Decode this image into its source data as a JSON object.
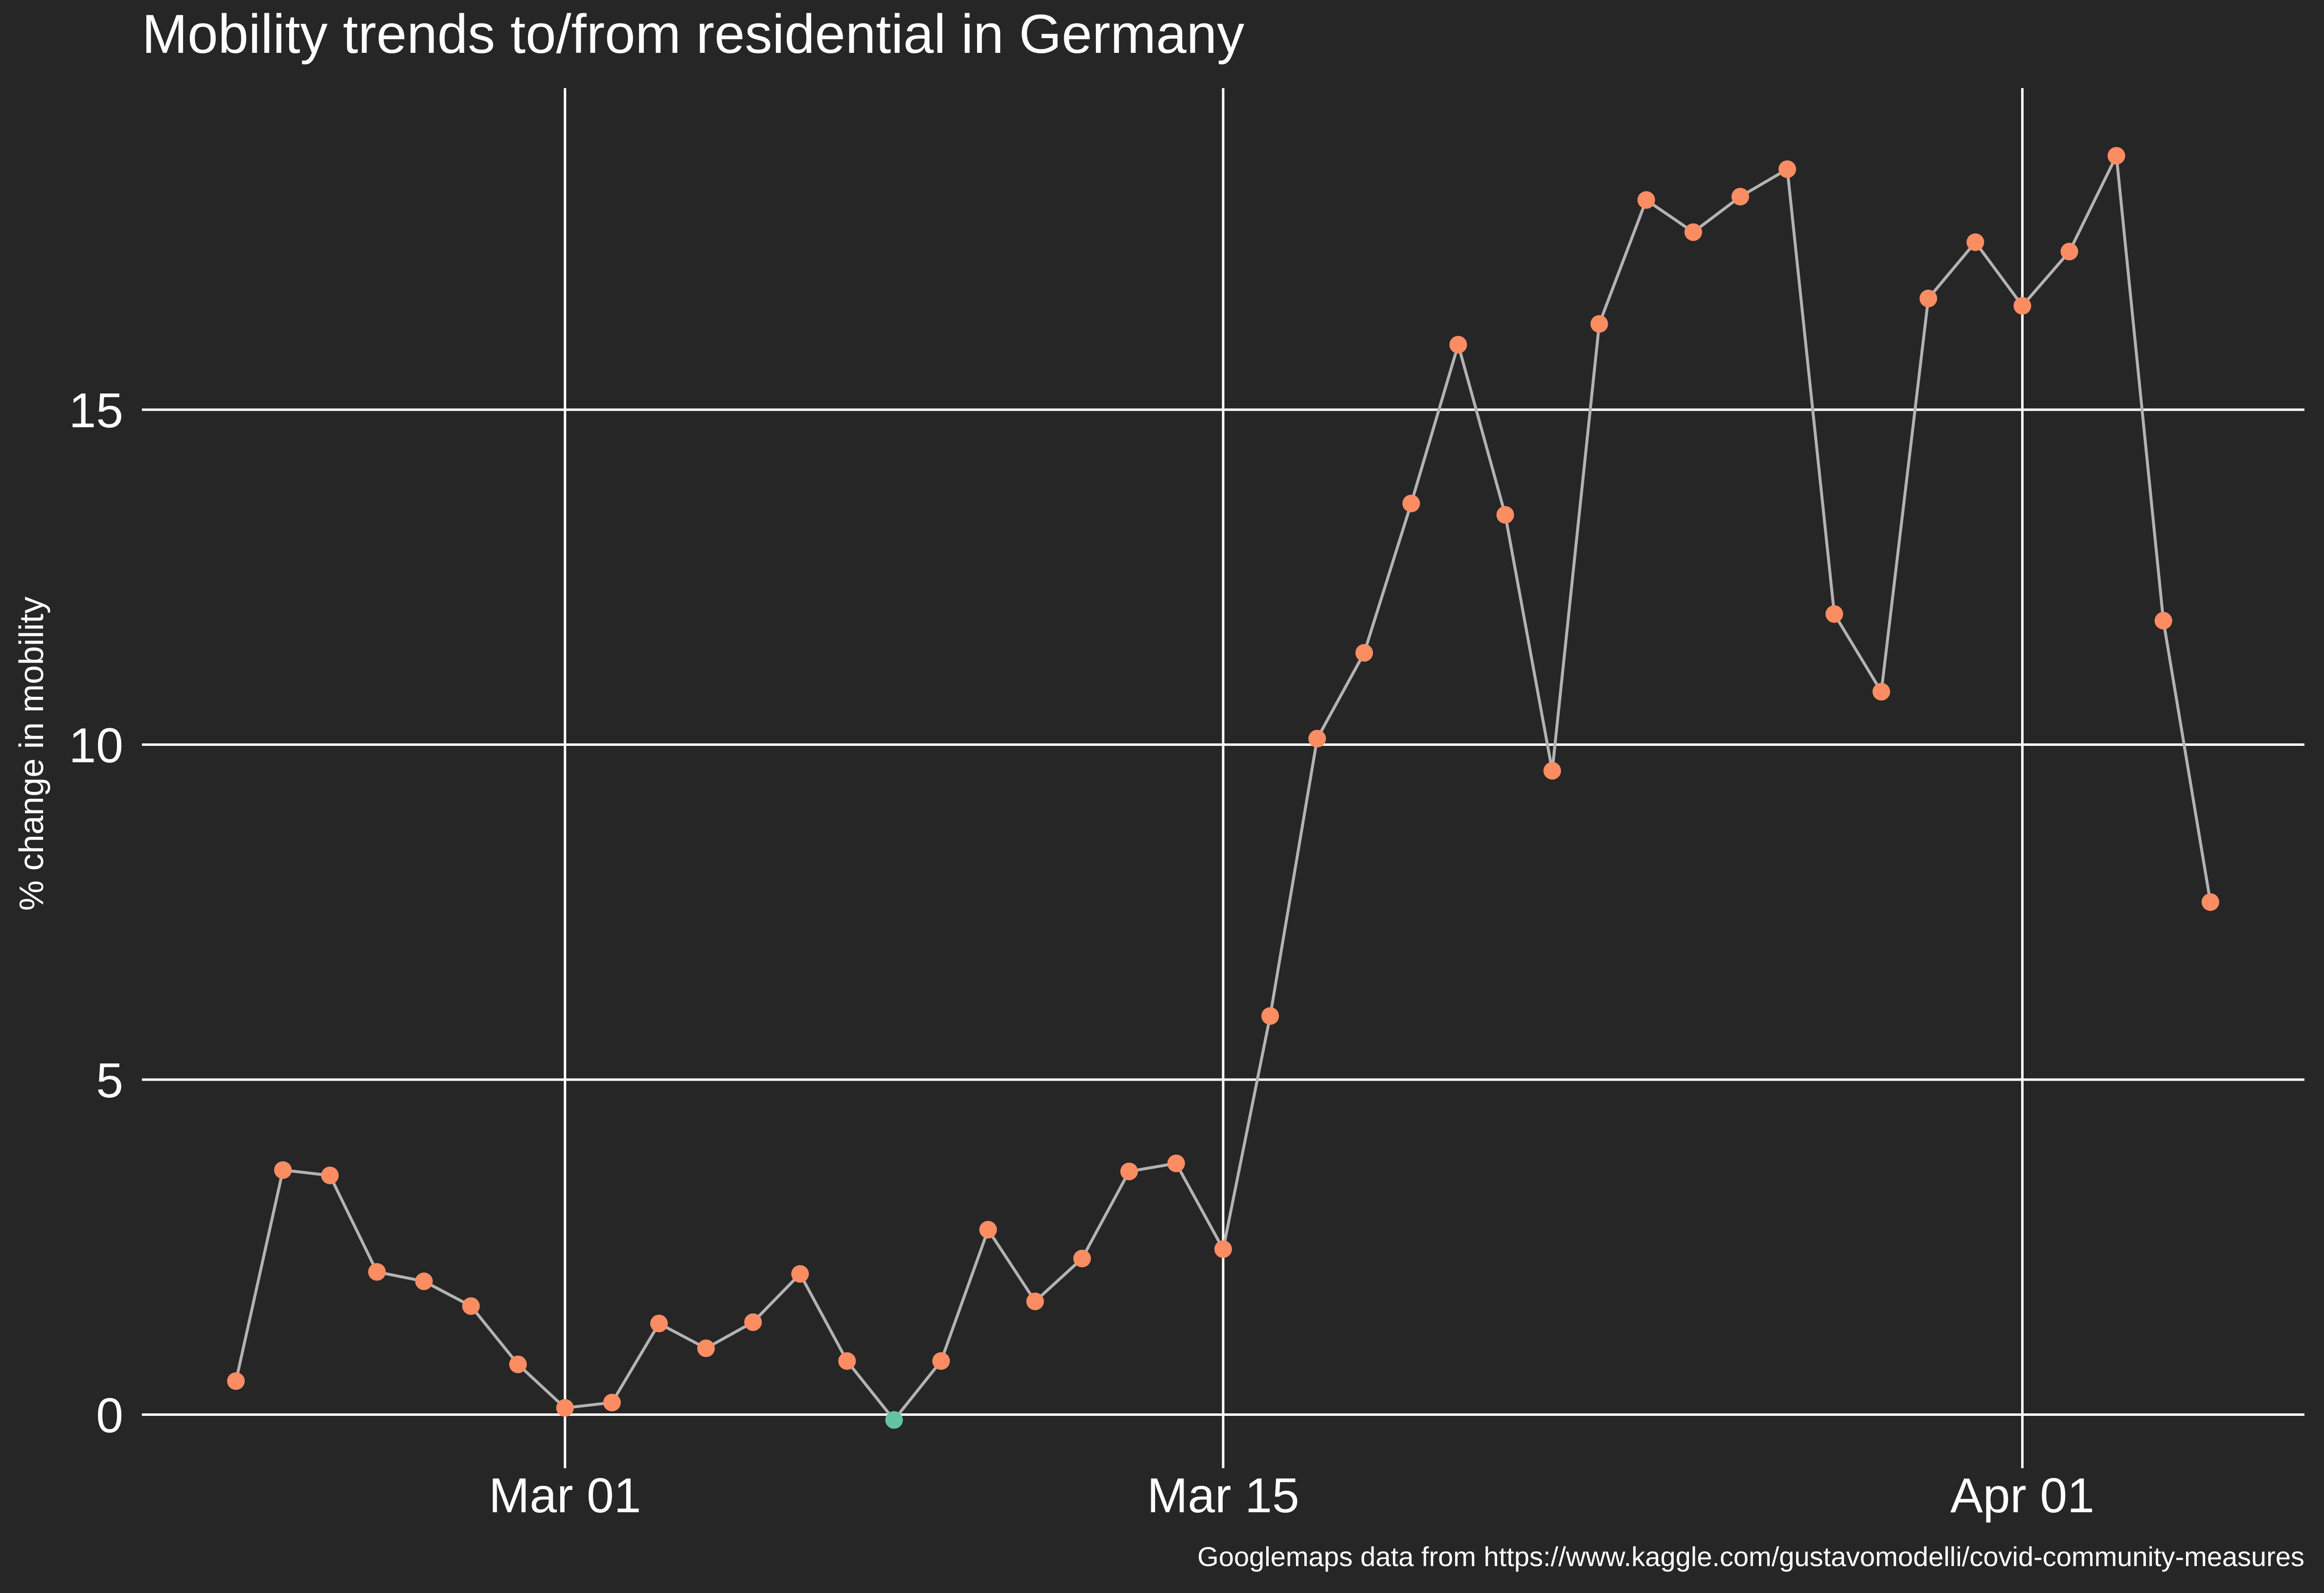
{
  "chart_data": {
    "type": "line",
    "title": "Mobility trends to/from residential in Germany",
    "ylabel": "% change in mobility",
    "xlabel": "",
    "caption": "Googlemaps data from https://www.kaggle.com/gustavomodelli/covid-community-measures",
    "x_ticks": [
      {
        "date": "2020-03-01",
        "label": "Mar 01"
      },
      {
        "date": "2020-03-15",
        "label": "Mar 15"
      },
      {
        "date": "2020-04-01",
        "label": "Apr 01"
      }
    ],
    "y_ticks": [
      0,
      5,
      10,
      15
    ],
    "xlim": [
      "2020-02-21",
      "2020-04-07"
    ],
    "ylim": [
      -0.8,
      19.8
    ],
    "grid": true,
    "line_color": "#b3b3b3",
    "point_color_positive": "#fc8d62",
    "point_color_negative": "#66c2a5",
    "background": "#262626",
    "series": [
      {
        "x": [
          "2020-02-23",
          "2020-02-24",
          "2020-02-25",
          "2020-02-26",
          "2020-02-27",
          "2020-02-28",
          "2020-02-29",
          "2020-03-01",
          "2020-03-02",
          "2020-03-03",
          "2020-03-04",
          "2020-03-05",
          "2020-03-06",
          "2020-03-07",
          "2020-03-08",
          "2020-03-09",
          "2020-03-10",
          "2020-03-11",
          "2020-03-12",
          "2020-03-13",
          "2020-03-14",
          "2020-03-15",
          "2020-03-16",
          "2020-03-17",
          "2020-03-18",
          "2020-03-19",
          "2020-03-20",
          "2020-03-21",
          "2020-03-22",
          "2020-03-23",
          "2020-03-24",
          "2020-03-25",
          "2020-03-26",
          "2020-03-27",
          "2020-03-28",
          "2020-03-29",
          "2020-03-30",
          "2020-03-31",
          "2020-04-01",
          "2020-04-02",
          "2020-04-03",
          "2020-04-04",
          "2020-04-05"
        ],
        "y": [
          0.5,
          3.65,
          3.57,
          2.13,
          1.99,
          1.62,
          0.75,
          0.1,
          0.18,
          1.36,
          0.99,
          1.38,
          2.1,
          0.8,
          -0.08,
          0.8,
          2.76,
          1.69,
          2.33,
          3.63,
          3.75,
          2.47,
          5.95,
          10.09,
          11.37,
          13.6,
          15.97,
          13.43,
          9.61,
          16.28,
          18.13,
          17.65,
          18.18,
          18.59,
          11.95,
          10.79,
          16.66,
          17.5,
          16.55,
          17.36,
          18.79,
          11.85,
          7.65
        ]
      }
    ]
  }
}
